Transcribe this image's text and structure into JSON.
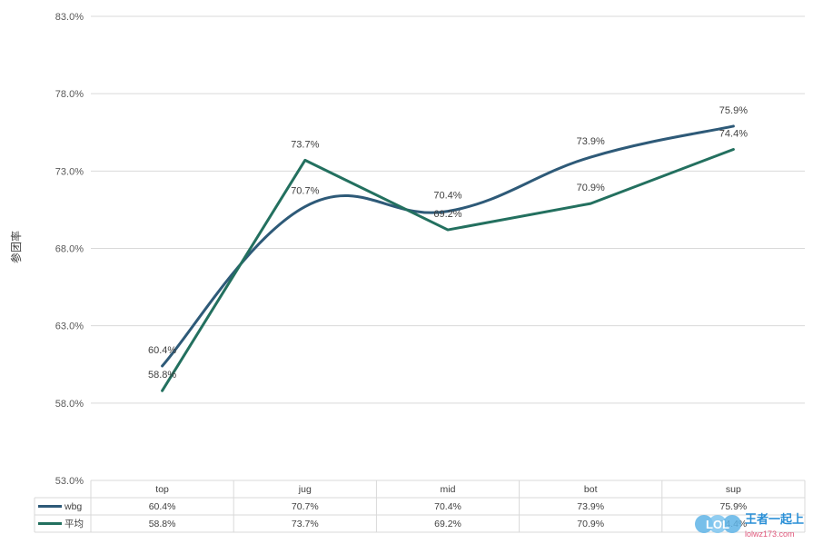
{
  "chart_data": {
    "type": "line",
    "title": "",
    "xlabel": "",
    "ylabel": "参团率",
    "categories": [
      "top",
      "jug",
      "mid",
      "bot",
      "sup"
    ],
    "ylim": [
      53.0,
      83.0
    ],
    "yticks": [
      "53.0%",
      "58.0%",
      "63.0%",
      "68.0%",
      "73.0%",
      "78.0%",
      "83.0%"
    ],
    "ytick_values": [
      53,
      58,
      63,
      68,
      73,
      78,
      83
    ],
    "grid": true,
    "legend": "data-table-bottom",
    "series": [
      {
        "name": "wbg",
        "values": [
          60.4,
          70.7,
          70.4,
          73.9,
          75.9
        ],
        "labels": [
          "60.4%",
          "70.7%",
          "70.4%",
          "73.9%",
          "75.9%"
        ],
        "color": "#2e5a78",
        "smooth": true
      },
      {
        "name": "平均",
        "values": [
          58.8,
          73.7,
          69.2,
          70.9,
          74.4
        ],
        "labels": [
          "58.8%",
          "73.7%",
          "69.2%",
          "70.9%",
          "74.4%"
        ],
        "color": "#23705f",
        "smooth": false
      }
    ]
  },
  "watermark": {
    "logo": "LOL",
    "text": "王者一起上",
    "url": "lolwz173.com"
  }
}
